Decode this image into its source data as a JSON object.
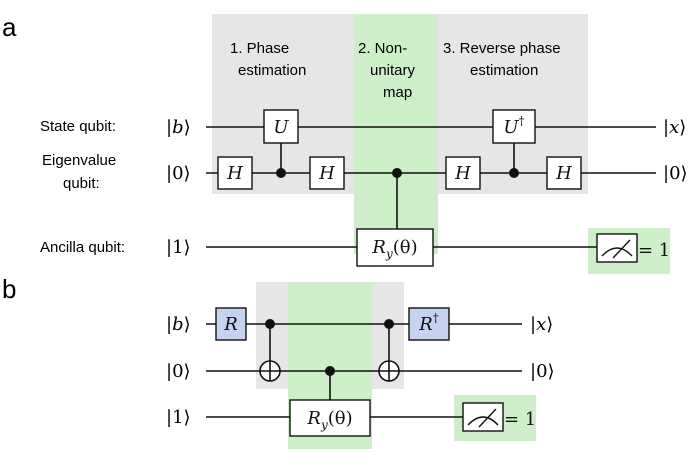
{
  "panel_a": {
    "label": "a",
    "stages": [
      {
        "line1": "1. Phase",
        "line2": "estimation",
        "line3": ""
      },
      {
        "line1": "2. Non-",
        "line2": "unitary",
        "line3": "map"
      },
      {
        "line1": "3. Reverse phase",
        "line2": "estimation",
        "line3": ""
      }
    ],
    "qubit_names": {
      "state": "State qubit:",
      "eigen_line1": "Eigenvalue",
      "eigen_line2": "qubit:",
      "ancilla": "Ancilla qubit:"
    },
    "kets_in": {
      "state": "b",
      "eigen": "0",
      "ancilla": "1"
    },
    "kets_out": {
      "state": "x",
      "eigen": "0"
    },
    "gates": {
      "h": "H",
      "u": "U",
      "u_dag_base": "U",
      "dag": "†",
      "ry_base": "R",
      "ry_sub": "y",
      "ry_arg": "(θ)"
    },
    "measure_result": "= 1"
  },
  "panel_b": {
    "label": "b",
    "kets_in": {
      "q0": "b",
      "q1": "0",
      "q2": "1"
    },
    "kets_out": {
      "q0": "x",
      "q1": "0"
    },
    "gates": {
      "r": "R",
      "r_dag_base": "R",
      "dag": "†",
      "ry_base": "R",
      "ry_sub": "y",
      "ry_arg": "(θ)"
    },
    "measure_result": "= 1"
  },
  "colors": {
    "gray_region": "#e6e6e6",
    "green_region": "#cdeec8",
    "blue_gate": "#c5d3f1",
    "line": "#111111"
  }
}
